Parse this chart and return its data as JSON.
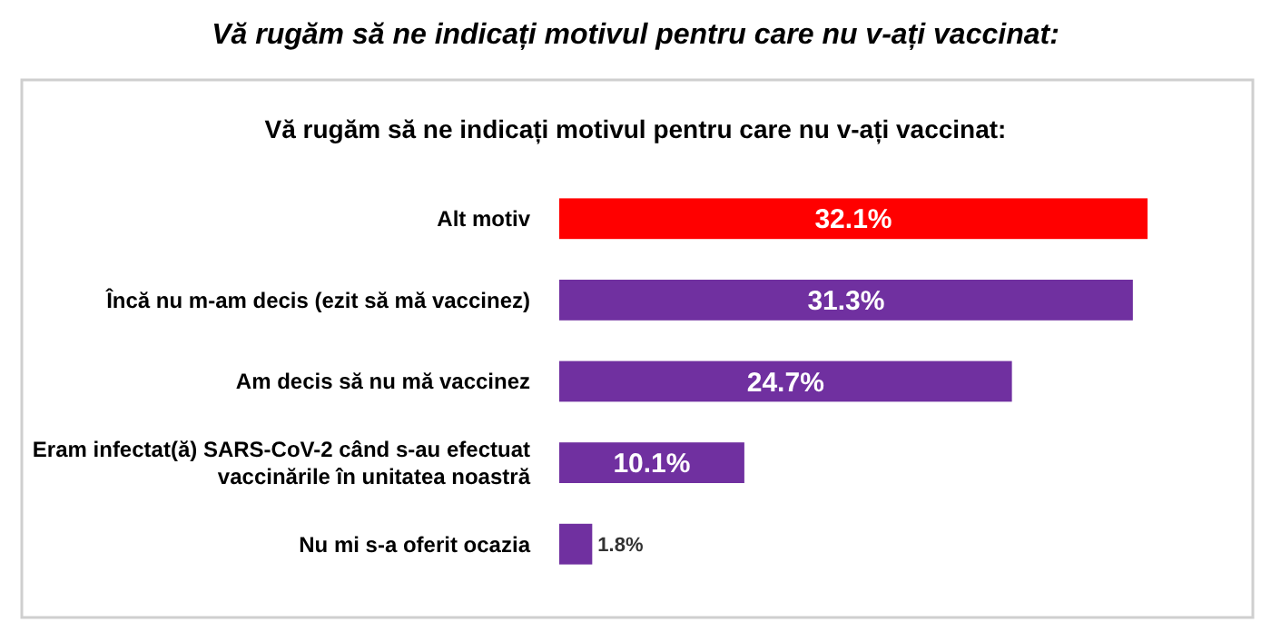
{
  "chart_data": {
    "type": "bar",
    "orientation": "horizontal",
    "title": "Vă rugăm să ne indicați motivul pentru care nu v-ați vaccinat:",
    "subtitle": "Vă rugăm să ne indicați motivul pentru care nu v-ați vaccinat:",
    "categories": [
      "Alt motiv",
      "Încă nu m-am decis (ezit să mă vaccinez)",
      "Am decis să nu mă vaccinez",
      "Eram infectat(ă) SARS-CoV-2 când s-au efectuat vaccinările în unitatea noastră",
      "Nu mi s-a oferit ocazia"
    ],
    "values": [
      32.1,
      31.3,
      24.7,
      10.1,
      1.8
    ],
    "colors": [
      "#ff0000",
      "#7030a0",
      "#7030a0",
      "#7030a0",
      "#7030a0"
    ],
    "value_labels": [
      "32.1%",
      "31.3%",
      "24.7%",
      "10.1%",
      "1.8%"
    ],
    "relative": false
  }
}
